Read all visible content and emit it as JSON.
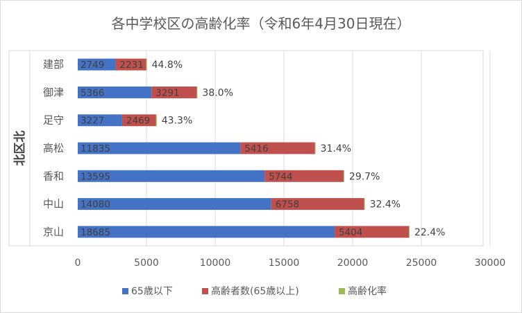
{
  "chart_data": {
    "type": "bar",
    "orientation": "horizontal",
    "stacked": true,
    "title": "各中学校区の高齢化率（令和6年4月30日現在）",
    "group_label": "北区北",
    "categories": [
      "建部",
      "御津",
      "足守",
      "高松",
      "香和",
      "中山",
      "京山"
    ],
    "series": [
      {
        "name": "65歳以下",
        "color": "#4472c4",
        "values": [
          2749,
          5366,
          3227,
          11835,
          13595,
          14080,
          18685
        ]
      },
      {
        "name": "高齢者数(65歳以上)",
        "color": "#c0504d",
        "values": [
          2231,
          3291,
          2469,
          5416,
          5744,
          6758,
          5404
        ]
      },
      {
        "name": "高齢化率",
        "color": "#9bbb59",
        "values": [
          44.8,
          38.0,
          43.3,
          31.4,
          29.7,
          32.4,
          22.4
        ],
        "labels": [
          "44.8%",
          "38.0%",
          "43.3%",
          "31.4%",
          "29.7%",
          "32.4%",
          "22.4%"
        ]
      }
    ],
    "xlim": [
      0,
      30000
    ],
    "xticks": [
      0,
      5000,
      10000,
      15000,
      20000,
      25000,
      30000
    ],
    "grid": true,
    "legend": "bottom"
  }
}
